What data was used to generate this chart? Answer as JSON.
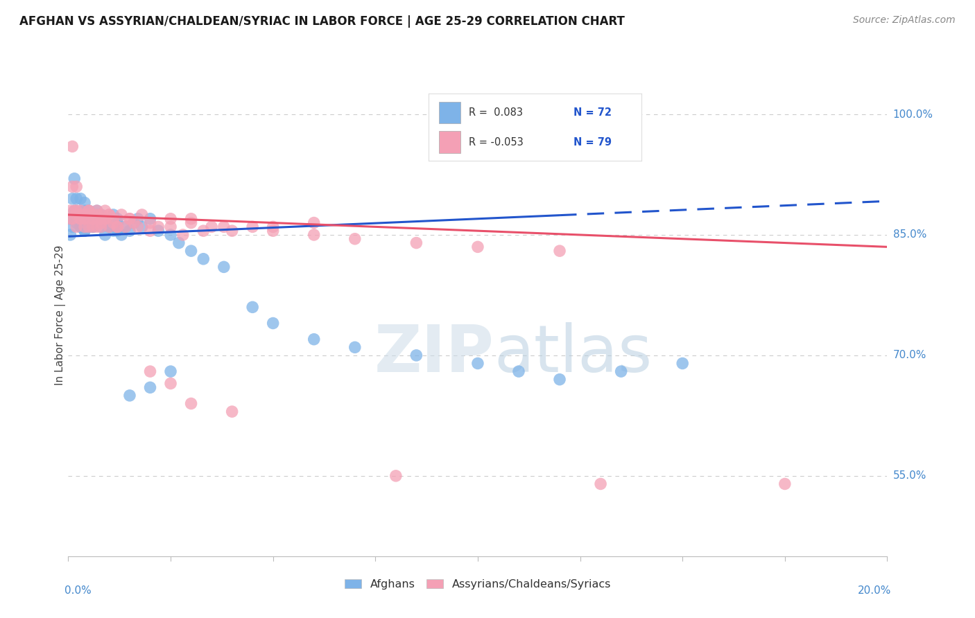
{
  "title": "AFGHAN VS ASSYRIAN/CHALDEAN/SYRIAC IN LABOR FORCE | AGE 25-29 CORRELATION CHART",
  "source": "Source: ZipAtlas.com",
  "ylabel": "In Labor Force | Age 25-29",
  "ytick_vals": [
    0.55,
    0.7,
    0.85,
    1.0
  ],
  "ytick_labels": [
    "55.0%",
    "70.0%",
    "85.0%",
    "100.0%"
  ],
  "afghan_color": "#7eb3e8",
  "assyrian_color": "#f4a0b5",
  "trendline_afghan_color": "#2255cc",
  "trendline_assyrian_color": "#e8506a",
  "watermark_zip": "ZIP",
  "watermark_atlas": "atlas",
  "watermark_zip_color": "#c5d5e8",
  "watermark_atlas_color": "#b8cfe0",
  "background_color": "#ffffff",
  "grid_color": "#cccccc",
  "axis_label_color": "#4488cc",
  "title_fontsize": 12,
  "source_fontsize": 10,
  "legend_r_color": "#333333",
  "legend_n_color": "#2255cc",
  "xlim": [
    0,
    0.2
  ],
  "ylim": [
    0.45,
    1.05
  ],
  "afghan_x": [
    0.0005,
    0.001,
    0.001,
    0.0015,
    0.0015,
    0.002,
    0.002,
    0.002,
    0.003,
    0.003,
    0.003,
    0.004,
    0.004,
    0.004,
    0.004,
    0.005,
    0.005,
    0.005,
    0.006,
    0.006,
    0.006,
    0.007,
    0.007,
    0.007,
    0.008,
    0.008,
    0.008,
    0.009,
    0.009,
    0.01,
    0.01,
    0.011,
    0.011,
    0.012,
    0.012,
    0.013,
    0.014,
    0.015,
    0.016,
    0.017,
    0.018,
    0.02,
    0.022,
    0.025,
    0.027,
    0.03,
    0.033,
    0.038,
    0.045,
    0.05,
    0.06,
    0.07,
    0.085,
    0.1,
    0.11,
    0.12,
    0.135,
    0.15,
    0.0005,
    0.001,
    0.002,
    0.003,
    0.004,
    0.005,
    0.006,
    0.007,
    0.008,
    0.01,
    0.012,
    0.015,
    0.02,
    0.025
  ],
  "afghan_y": [
    0.87,
    0.86,
    0.87,
    0.88,
    0.92,
    0.895,
    0.88,
    0.865,
    0.875,
    0.86,
    0.895,
    0.87,
    0.88,
    0.855,
    0.89,
    0.87,
    0.865,
    0.88,
    0.875,
    0.86,
    0.87,
    0.865,
    0.875,
    0.88,
    0.87,
    0.86,
    0.875,
    0.85,
    0.865,
    0.86,
    0.87,
    0.875,
    0.855,
    0.865,
    0.87,
    0.85,
    0.86,
    0.855,
    0.865,
    0.87,
    0.86,
    0.87,
    0.855,
    0.85,
    0.84,
    0.83,
    0.82,
    0.81,
    0.76,
    0.74,
    0.72,
    0.71,
    0.7,
    0.69,
    0.68,
    0.67,
    0.68,
    0.69,
    0.85,
    0.895,
    0.87,
    0.86,
    0.855,
    0.875,
    0.86,
    0.865,
    0.87,
    0.86,
    0.855,
    0.65,
    0.66,
    0.68
  ],
  "assyrian_x": [
    0.0005,
    0.001,
    0.001,
    0.0015,
    0.002,
    0.002,
    0.002,
    0.003,
    0.003,
    0.003,
    0.004,
    0.004,
    0.004,
    0.005,
    0.005,
    0.005,
    0.006,
    0.006,
    0.006,
    0.007,
    0.007,
    0.007,
    0.008,
    0.008,
    0.008,
    0.009,
    0.009,
    0.01,
    0.01,
    0.011,
    0.011,
    0.012,
    0.013,
    0.014,
    0.015,
    0.016,
    0.017,
    0.018,
    0.02,
    0.022,
    0.025,
    0.028,
    0.03,
    0.033,
    0.038,
    0.045,
    0.05,
    0.06,
    0.07,
    0.085,
    0.1,
    0.12,
    0.0005,
    0.001,
    0.002,
    0.003,
    0.004,
    0.005,
    0.006,
    0.007,
    0.008,
    0.009,
    0.01,
    0.012,
    0.015,
    0.02,
    0.025,
    0.03,
    0.035,
    0.04,
    0.05,
    0.06,
    0.02,
    0.025,
    0.03,
    0.04,
    0.08,
    0.13,
    0.175
  ],
  "assyrian_y": [
    0.88,
    0.96,
    0.87,
    0.88,
    0.875,
    0.86,
    0.91,
    0.87,
    0.88,
    0.87,
    0.875,
    0.86,
    0.87,
    0.88,
    0.86,
    0.875,
    0.87,
    0.86,
    0.875,
    0.87,
    0.88,
    0.86,
    0.87,
    0.875,
    0.86,
    0.87,
    0.88,
    0.86,
    0.875,
    0.865,
    0.87,
    0.86,
    0.875,
    0.86,
    0.87,
    0.865,
    0.86,
    0.875,
    0.855,
    0.86,
    0.87,
    0.85,
    0.865,
    0.855,
    0.86,
    0.86,
    0.855,
    0.85,
    0.845,
    0.84,
    0.835,
    0.83,
    0.87,
    0.91,
    0.88,
    0.875,
    0.87,
    0.88,
    0.87,
    0.875,
    0.865,
    0.87,
    0.875,
    0.86,
    0.87,
    0.865,
    0.86,
    0.87,
    0.86,
    0.855,
    0.86,
    0.865,
    0.68,
    0.665,
    0.64,
    0.63,
    0.55,
    0.54,
    0.54
  ]
}
